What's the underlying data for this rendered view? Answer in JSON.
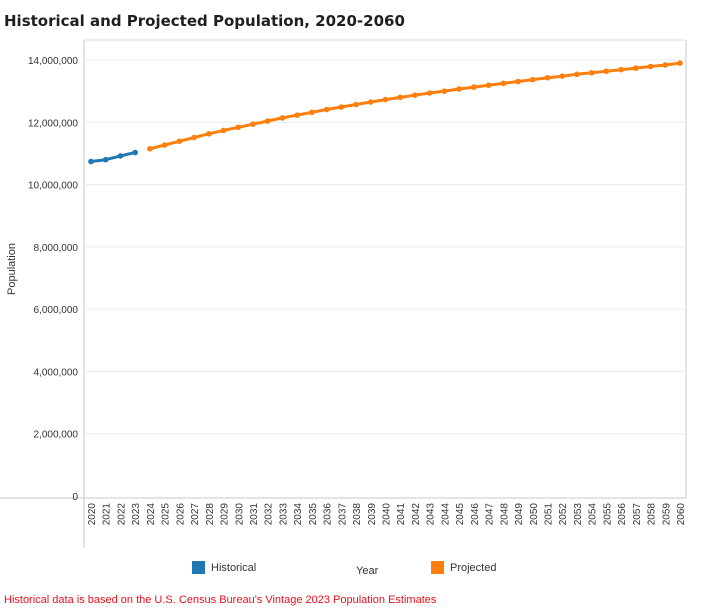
{
  "chart_data": {
    "type": "line",
    "title": "Historical and Projected Population, 2020-2060",
    "xlabel": "Year",
    "ylabel": "Population",
    "ylim": [
      0,
      14000000
    ],
    "y_ticks": [
      "0",
      "2,000,000",
      "4,000,000",
      "6,000,000",
      "8,000,000",
      "10,000,000",
      "12,000,000",
      "14,000,000"
    ],
    "grid": "horizontal",
    "legend": "bottom",
    "x": [
      2020,
      2021,
      2022,
      2023,
      2024,
      2025,
      2026,
      2027,
      2028,
      2029,
      2030,
      2031,
      2032,
      2033,
      2034,
      2035,
      2036,
      2037,
      2038,
      2039,
      2040,
      2041,
      2042,
      2043,
      2044,
      2045,
      2046,
      2047,
      2048,
      2049,
      2050,
      2051,
      2052,
      2053,
      2054,
      2055,
      2056,
      2057,
      2058,
      2059,
      2060
    ],
    "series": [
      {
        "name": "Historical",
        "color": "#1f77b4",
        "x": [
          2020,
          2021,
          2022,
          2023
        ],
        "values": [
          10740000,
          10800000,
          10920000,
          11030000
        ]
      },
      {
        "name": "Projected",
        "color": "#ff7f0e",
        "x": [
          2024,
          2025,
          2026,
          2027,
          2028,
          2029,
          2030,
          2031,
          2032,
          2033,
          2034,
          2035,
          2036,
          2037,
          2038,
          2039,
          2040,
          2041,
          2042,
          2043,
          2044,
          2045,
          2046,
          2047,
          2048,
          2049,
          2050,
          2051,
          2052,
          2053,
          2054,
          2055,
          2056,
          2057,
          2058,
          2059,
          2060
        ],
        "values": [
          11150000,
          11270000,
          11390000,
          11510000,
          11630000,
          11740000,
          11840000,
          11940000,
          12040000,
          12140000,
          12230000,
          12320000,
          12410000,
          12490000,
          12570000,
          12650000,
          12730000,
          12800000,
          12870000,
          12940000,
          13000000,
          13070000,
          13130000,
          13190000,
          13250000,
          13310000,
          13370000,
          13430000,
          13480000,
          13540000,
          13590000,
          13640000,
          13690000,
          13740000,
          13790000,
          13840000,
          13900000
        ]
      }
    ],
    "note": "Historical data is based on the U.S. Census Bureau's Vintage 2023 Population Estimates"
  }
}
